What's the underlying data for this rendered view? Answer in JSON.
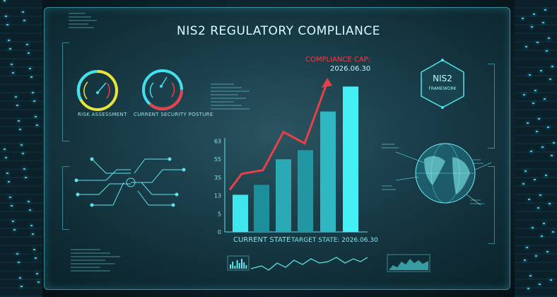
{
  "title": "NIS2 REGULATORY COMPLIANCE",
  "gauges": [
    {
      "label": "RISK ASSESSMENT",
      "colors": [
        "#3fe0f0",
        "#e8e43a"
      ]
    },
    {
      "label": "CURRENT SECURITY POSTURE",
      "colors": [
        "#3fe0f0",
        "#e8404a"
      ]
    }
  ],
  "framework": {
    "line1": "NIS2",
    "line2": "FRAMEWORK"
  },
  "chart_data": {
    "type": "bar",
    "y_ticks": [
      "0",
      "5",
      "13",
      "35",
      "55",
      "63"
    ],
    "values": [
      14,
      26,
      55,
      59,
      76,
      87
    ],
    "trend": {
      "type": "line",
      "values": [
        20,
        39,
        43,
        67,
        62,
        89
      ],
      "color": "#e8404a"
    },
    "bar_color": "#3fe6ee",
    "xlabels": [
      "CURRENT STATE",
      "TARGET STATE: 2026.06.30"
    ],
    "annotation": {
      "label": "COMPLIANCE CAP:",
      "date": "2026.06.30"
    },
    "grid": false
  },
  "colors": {
    "accent": "#3fe6ee",
    "alert": "#e8404a"
  }
}
